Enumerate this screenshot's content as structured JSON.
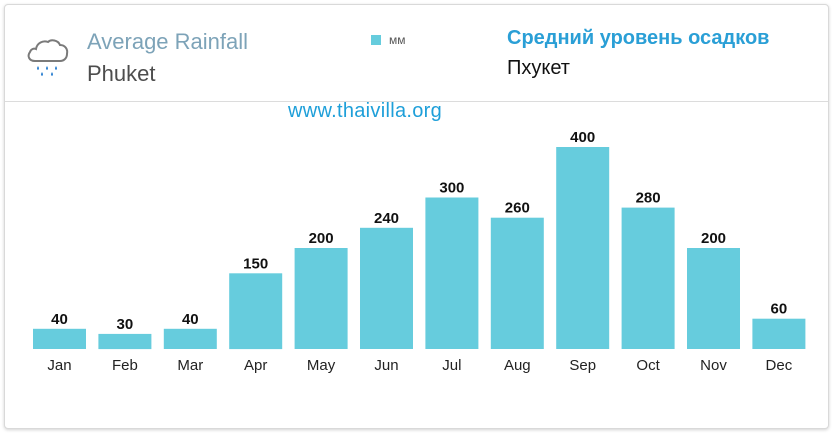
{
  "header": {
    "title_en": "Average Rainfall",
    "subtitle_en": "Phuket",
    "legend_label": "мм",
    "title_ru": "Средний уровень осадков",
    "subtitle_ru": "Пхукет",
    "website": "www.thaivilla.org",
    "icon": "rain-cloud-icon"
  },
  "colors": {
    "bar": "#66ccdd",
    "title_en": "#7da3b8",
    "title_ru": "#2a9fd6",
    "website": "#1e9fd9"
  },
  "chart_data": {
    "type": "bar",
    "title": "Average Rainfall",
    "categories": [
      "Jan",
      "Feb",
      "Mar",
      "Apr",
      "May",
      "Jun",
      "Jul",
      "Aug",
      "Sep",
      "Oct",
      "Nov",
      "Dec"
    ],
    "series": [
      {
        "name": "мм",
        "values": [
          40,
          30,
          40,
          150,
          200,
          240,
          300,
          260,
          400,
          280,
          200,
          60
        ]
      }
    ],
    "ylim": [
      0,
      400
    ],
    "grid": false,
    "legend": "top-center",
    "data_labels": true
  }
}
